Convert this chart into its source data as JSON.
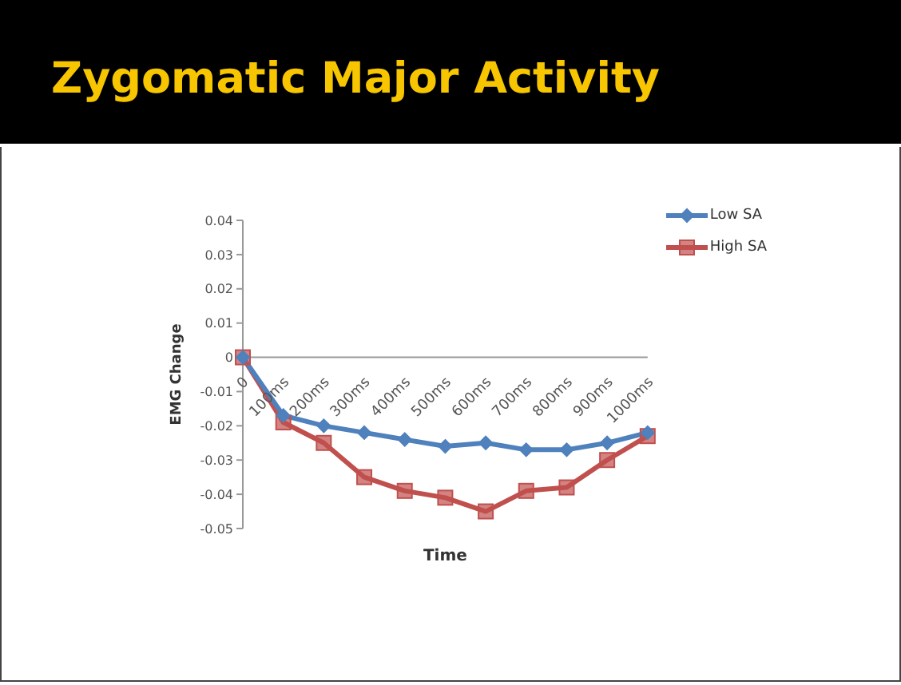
{
  "chart_data": {
    "type": "line",
    "title": "Zygomatic Major Activity",
    "xlabel": "Time",
    "ylabel": "EMG Change",
    "categories": [
      "0",
      "100ms",
      "200ms",
      "300ms",
      "400ms",
      "500ms",
      "600ms",
      "700ms",
      "800ms",
      "900ms",
      "1000ms"
    ],
    "series": [
      {
        "name": "Low SA",
        "color": "#4f81bd",
        "marker": "diamond",
        "values": [
          0,
          -0.017,
          -0.02,
          -0.022,
          -0.024,
          -0.026,
          -0.025,
          -0.027,
          -0.027,
          -0.025,
          -0.022
        ]
      },
      {
        "name": "High SA",
        "color": "#c0504d",
        "marker": "square",
        "values": [
          0,
          -0.019,
          -0.025,
          -0.035,
          -0.039,
          -0.041,
          -0.045,
          -0.039,
          -0.038,
          -0.03,
          -0.023
        ]
      }
    ],
    "ylim": [
      -0.05,
      0.04
    ],
    "yticks": [
      -0.05,
      -0.04,
      -0.03,
      -0.02,
      -0.01,
      0,
      0.01,
      0.02,
      0.03,
      0.04
    ],
    "grid": false,
    "legend": "top right"
  }
}
